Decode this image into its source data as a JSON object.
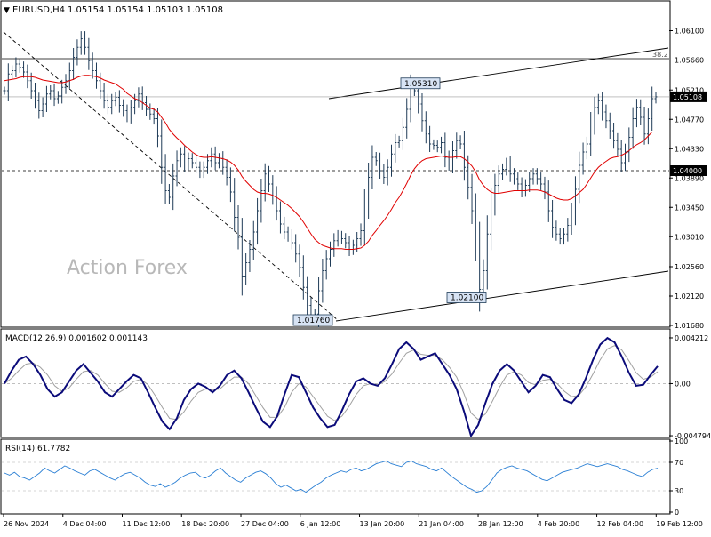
{
  "header": {
    "symbol": "EURUSD,H4",
    "ohlc": "1.05154 1.05154 1.05103 1.05108"
  },
  "watermark": "Action Forex",
  "colors": {
    "price": "#1f3b57",
    "ma": "#e00000",
    "macd": "#0b0b7a",
    "signal": "#a0a0a0",
    "rsi": "#2a7fd4",
    "trend": "#000000",
    "label_fill": "#d7e3f4",
    "label_stroke": "#1f3b57",
    "current_bg": "#000000"
  },
  "chart_data": [
    {
      "type": "line",
      "panel": "price",
      "ylim": [
        1.0168,
        1.0632
      ],
      "y_ticks": [
        "1.06100",
        "1.05660",
        "1.05210",
        "1.04770",
        "1.04330",
        "1.03890",
        "1.03450",
        "1.03010",
        "1.02560",
        "1.02120",
        "1.01680"
      ],
      "x_labels": [
        "26 Nov 2024",
        "4 Dec 04:00",
        "11 Dec 12:00",
        "18 Dec 20:00",
        "27 Dec 04:00",
        "6 Jan 12:00",
        "13 Jan 20:00",
        "21 Jan 04:00",
        "28 Jan 12:00",
        "4 Feb 20:00",
        "12 Feb 04:00",
        "19 Feb 12:00"
      ],
      "series": [
        {
          "values": [
            1.052,
            1.0545,
            1.055,
            1.056,
            1.0555,
            1.0548,
            1.0535,
            1.052,
            1.0505,
            1.049,
            1.05,
            1.0515,
            1.052,
            1.0508,
            1.0512,
            1.0525,
            1.0535,
            1.055,
            1.057,
            1.0585,
            1.0598,
            1.0585,
            1.0565,
            1.055,
            1.0535,
            1.052,
            1.0505,
            1.0495,
            1.0505,
            1.051,
            1.0498,
            1.049,
            1.0482,
            1.0495,
            1.0505,
            1.0515,
            1.0502,
            1.0492,
            1.0485,
            1.0478,
            1.0452,
            1.0405,
            1.037,
            1.036,
            1.0392,
            1.0415,
            1.0425,
            1.041,
            1.0418,
            1.0412,
            1.0405,
            1.0398,
            1.0405,
            1.0415,
            1.0425,
            1.0412,
            1.0418,
            1.0405,
            1.039,
            1.0368,
            1.033,
            1.03,
            1.0242,
            1.0262,
            1.0282,
            1.0308,
            1.034,
            1.037,
            1.0395,
            1.038,
            1.0362,
            1.034,
            1.032,
            1.0308,
            1.0302,
            1.0292,
            1.0275,
            1.0255,
            1.0225,
            1.0198,
            1.0182,
            1.0185,
            1.022,
            1.025,
            1.0268,
            1.0282,
            1.0295,
            1.0302,
            1.0298,
            1.0292,
            1.0282,
            1.0288,
            1.0298,
            1.031,
            1.035,
            1.039,
            1.042,
            1.0415,
            1.04,
            1.039,
            1.0405,
            1.0425,
            1.0442,
            1.0445,
            1.0465,
            1.0492,
            1.0525,
            1.052,
            1.05,
            1.0475,
            1.0455,
            1.044,
            1.0438,
            1.0435,
            1.0442,
            1.042,
            1.041,
            1.043,
            1.0445,
            1.044,
            1.0405,
            1.0375,
            1.034,
            1.029,
            1.0222,
            1.025,
            1.0305,
            1.035,
            1.0378,
            1.0395,
            1.0402,
            1.041,
            1.0395,
            1.0388,
            1.038,
            1.037,
            1.0378,
            1.0388,
            1.0395,
            1.0388,
            1.038,
            1.0368,
            1.034,
            1.0315,
            1.0305,
            1.0298,
            1.0305,
            1.0318,
            1.0338,
            1.0372,
            1.0408,
            1.0428,
            1.044,
            1.047,
            1.0495,
            1.0505,
            1.0488,
            1.0475,
            1.046,
            1.0445,
            1.0432,
            1.0412,
            1.0428,
            1.045,
            1.0478,
            1.0495,
            1.048,
            1.0455,
            1.0478,
            1.0508,
            1.05108
          ]
        },
        {
          "name": "MA",
          "values": [
            1.0535,
            1.0536,
            1.0537,
            1.0538,
            1.054,
            1.0541,
            1.0541,
            1.0541,
            1.054,
            1.0538,
            1.0536,
            1.0535,
            1.0534,
            1.0533,
            1.0532,
            1.0532,
            1.0533,
            1.0535,
            1.0537,
            1.054,
            1.0542,
            1.0543,
            1.0543,
            1.0542,
            1.0541,
            1.0539,
            1.0536,
            1.0534,
            1.0532,
            1.053,
            1.0526,
            1.0522,
            1.0516,
            1.0512,
            1.0508,
            1.0506,
            1.0502,
            1.0498,
            1.0494,
            1.0492,
            1.0488,
            1.048,
            1.0472,
            1.0462,
            1.0455,
            1.0449,
            1.0444,
            1.0438,
            1.0433,
            1.0428,
            1.0424,
            1.0421,
            1.042,
            1.042,
            1.0421,
            1.042,
            1.0419,
            1.0418,
            1.0416,
            1.0413,
            1.0408,
            1.0401,
            1.0391,
            1.0384,
            1.0378,
            1.0372,
            1.0368,
            1.0366,
            1.0366,
            1.0365,
            1.0363,
            1.036,
            1.0356,
            1.0352,
            1.0348,
            1.0343,
            1.0337,
            1.0331,
            1.0323,
            1.0314,
            1.0305,
            1.0297,
            1.0292,
            1.0288,
            1.0286,
            1.0284,
            1.0283,
            1.0283,
            1.0283,
            1.0282,
            1.0282,
            1.0282,
            1.0283,
            1.0284,
            1.0288,
            1.0294,
            1.0303,
            1.031,
            1.0318,
            1.0325,
            1.0333,
            1.0342,
            1.0352,
            1.036,
            1.037,
            1.0381,
            1.0393,
            1.0403,
            1.041,
            1.0415,
            1.0418,
            1.0419,
            1.042,
            1.0421,
            1.0422,
            1.0421,
            1.042,
            1.042,
            1.0421,
            1.0421,
            1.0418,
            1.0413,
            1.0407,
            1.0398,
            1.0386,
            1.0378,
            1.0372,
            1.0368,
            1.0366,
            1.0366,
            1.0367,
            1.0368,
            1.0369,
            1.037,
            1.037,
            1.037,
            1.037,
            1.0371,
            1.0371,
            1.0371,
            1.037,
            1.0368,
            1.0365,
            1.0362,
            1.0359,
            1.0357,
            1.0356,
            1.0356,
            1.0358,
            1.0362,
            1.0367,
            1.0372,
            1.038,
            1.0389,
            1.0398,
            1.0405,
            1.041,
            1.0414,
            1.0418,
            1.042,
            1.0421,
            1.0423,
            1.0426,
            1.043,
            1.0435,
            1.0439,
            1.0442,
            1.0446,
            1.0452,
            1.0458
          ]
        }
      ],
      "annotations": [
        {
          "text": "1.05310",
          "value": 1.0531
        },
        {
          "text": "1.02100",
          "value": 1.021
        },
        {
          "text": "1.01760",
          "value": 1.0176
        }
      ],
      "horizontal_lines": [
        {
          "value": 1.0568,
          "style": "solid",
          "label": "38.2"
        },
        {
          "value": 1.04,
          "style": "dashed",
          "label": "1.04000"
        }
      ],
      "current_price": "1.05108"
    },
    {
      "type": "line",
      "panel": "macd",
      "title": "MACD(12,26,9) 0.001602 0.001143",
      "ylim": [
        -0.00479,
        0.00421
      ],
      "y_ticks": [
        "0.004212",
        "0.00",
        "-0.004794"
      ],
      "series": [
        {
          "name": "MACD",
          "values": [
            0.0,
            0.0012,
            0.0022,
            0.0025,
            0.0018,
            0.0008,
            -0.0005,
            -0.0012,
            -0.0008,
            0.0002,
            0.0012,
            0.0018,
            0.001,
            0.0002,
            -0.0008,
            -0.0012,
            -0.0005,
            0.0002,
            0.0008,
            0.0005,
            -0.0008,
            -0.0022,
            -0.0035,
            -0.0042,
            -0.0032,
            -0.0015,
            -0.0005,
            0.0,
            -0.0003,
            -0.0008,
            -0.0002,
            0.0008,
            0.0012,
            0.0005,
            -0.0008,
            -0.0022,
            -0.0035,
            -0.004,
            -0.003,
            -0.001,
            0.0008,
            0.0006,
            -0.0008,
            -0.0022,
            -0.0032,
            -0.004,
            -0.0038,
            -0.0025,
            -0.001,
            0.0002,
            0.0005,
            0.0,
            -0.0002,
            0.0005,
            0.0018,
            0.0032,
            0.0038,
            0.0032,
            0.0022,
            0.0025,
            0.0028,
            0.0018,
            0.0008,
            -0.0005,
            -0.0025,
            -0.0048,
            -0.0038,
            -0.0018,
            0.0,
            0.0012,
            0.0018,
            0.0012,
            0.0002,
            -0.0008,
            -0.0002,
            0.0008,
            0.0006,
            -0.0005,
            -0.0015,
            -0.0018,
            -0.001,
            0.0005,
            0.0022,
            0.0036,
            0.0042,
            0.0038,
            0.0025,
            0.001,
            -0.0002,
            -0.0001,
            0.0008,
            0.0016
          ]
        },
        {
          "name": "Signal",
          "values": [
            0.0,
            0.0005,
            0.0012,
            0.0018,
            0.0019,
            0.0015,
            0.0008,
            -0.0002,
            -0.0007,
            -0.0004,
            0.0004,
            0.0011,
            0.0012,
            0.0008,
            0.0,
            -0.0007,
            -0.0008,
            -0.0004,
            0.0002,
            0.0004,
            -0.0001,
            -0.0011,
            -0.0022,
            -0.0032,
            -0.0033,
            -0.0026,
            -0.0016,
            -0.0008,
            -0.0005,
            -0.0006,
            -0.0005,
            0.0001,
            0.0006,
            0.0006,
            0.0,
            -0.0011,
            -0.0022,
            -0.0031,
            -0.0031,
            -0.0022,
            -0.0008,
            0.0,
            -0.0003,
            -0.0012,
            -0.0021,
            -0.003,
            -0.0034,
            -0.003,
            -0.0021,
            -0.001,
            -0.0002,
            0.0,
            -0.0001,
            0.0002,
            0.0009,
            0.0019,
            0.0028,
            0.0031,
            0.0027,
            0.0026,
            0.0026,
            0.0022,
            0.0015,
            0.0006,
            -0.0009,
            -0.0027,
            -0.0033,
            -0.0028,
            -0.0016,
            -0.0003,
            0.0008,
            0.0011,
            0.0008,
            0.0001,
            -0.0001,
            0.0003,
            0.0004,
            0.0,
            -0.0007,
            -0.0012,
            -0.0011,
            -0.0003,
            0.0009,
            0.0022,
            0.0032,
            0.0035,
            0.0031,
            0.0021,
            0.001,
            0.0004,
            0.0006,
            0.0011
          ]
        }
      ]
    },
    {
      "type": "line",
      "panel": "rsi",
      "title": "RSI(14) 61.7782",
      "ylim": [
        0,
        100
      ],
      "y_ticks": [
        "100",
        "70",
        "30",
        "0"
      ],
      "series": [
        {
          "name": "RSI",
          "values": [
            55,
            52,
            56,
            50,
            48,
            45,
            50,
            55,
            62,
            58,
            55,
            60,
            65,
            62,
            58,
            55,
            52,
            58,
            60,
            56,
            52,
            48,
            45,
            50,
            54,
            56,
            52,
            48,
            42,
            38,
            36,
            40,
            35,
            38,
            42,
            48,
            52,
            55,
            56,
            50,
            48,
            52,
            58,
            62,
            55,
            50,
            45,
            42,
            48,
            52,
            56,
            58,
            54,
            48,
            40,
            35,
            38,
            34,
            30,
            32,
            28,
            33,
            38,
            42,
            48,
            52,
            55,
            58,
            56,
            60,
            62,
            58,
            60,
            64,
            68,
            70,
            72,
            68,
            66,
            64,
            70,
            72,
            68,
            66,
            64,
            60,
            58,
            62,
            56,
            50,
            45,
            40,
            35,
            32,
            28,
            30,
            36,
            45,
            55,
            60,
            63,
            65,
            62,
            60,
            58,
            54,
            50,
            46,
            44,
            48,
            52,
            56,
            58,
            60,
            62,
            65,
            68,
            66,
            64,
            66,
            68,
            66,
            64,
            60,
            58,
            55,
            52,
            50,
            56,
            60,
            61.78
          ]
        }
      ]
    }
  ]
}
